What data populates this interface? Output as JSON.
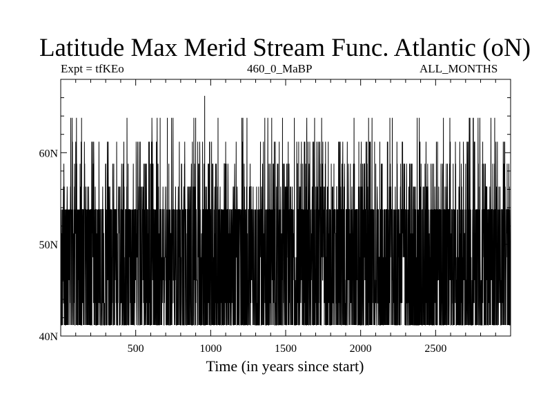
{
  "chart_data": {
    "type": "line",
    "title": "Latitude Max Merid Stream Func. Atlantic (oN)",
    "subtitle_left": "Expt = tfKEo",
    "subtitle_center": "460_0_MaBP",
    "subtitle_right": "ALL_MONTHS",
    "xlabel": "Time (in years since start)",
    "ylabel": "",
    "xlim": [
      0,
      3000
    ],
    "ylim": [
      40,
      68
    ],
    "x_ticks": [
      500,
      1000,
      1500,
      2000,
      2500
    ],
    "x_tick_labels": [
      "500",
      "1000",
      "1500",
      "2000",
      "2500"
    ],
    "y_ticks": [
      40,
      50,
      60
    ],
    "y_tick_labels": [
      "40N",
      "50N",
      "60N"
    ],
    "grid": false,
    "series": [
      {
        "color": "#000000",
        "x_start": 1,
        "x_step": 1,
        "levels": [
          41.2,
          43.6,
          46.1,
          48.6,
          51.2,
          53.8,
          56.3,
          58.8,
          61.2,
          63.8,
          66.2
        ],
        "baseline_levels": [
          41.2,
          53.8
        ],
        "peak_value": 66.2,
        "peak_x": 960,
        "note_values": [
          41.2,
          43.6,
          46.1,
          48.6,
          51.2,
          53.8,
          56.3,
          58.8,
          61.2,
          63.8
        ]
      }
    ]
  }
}
